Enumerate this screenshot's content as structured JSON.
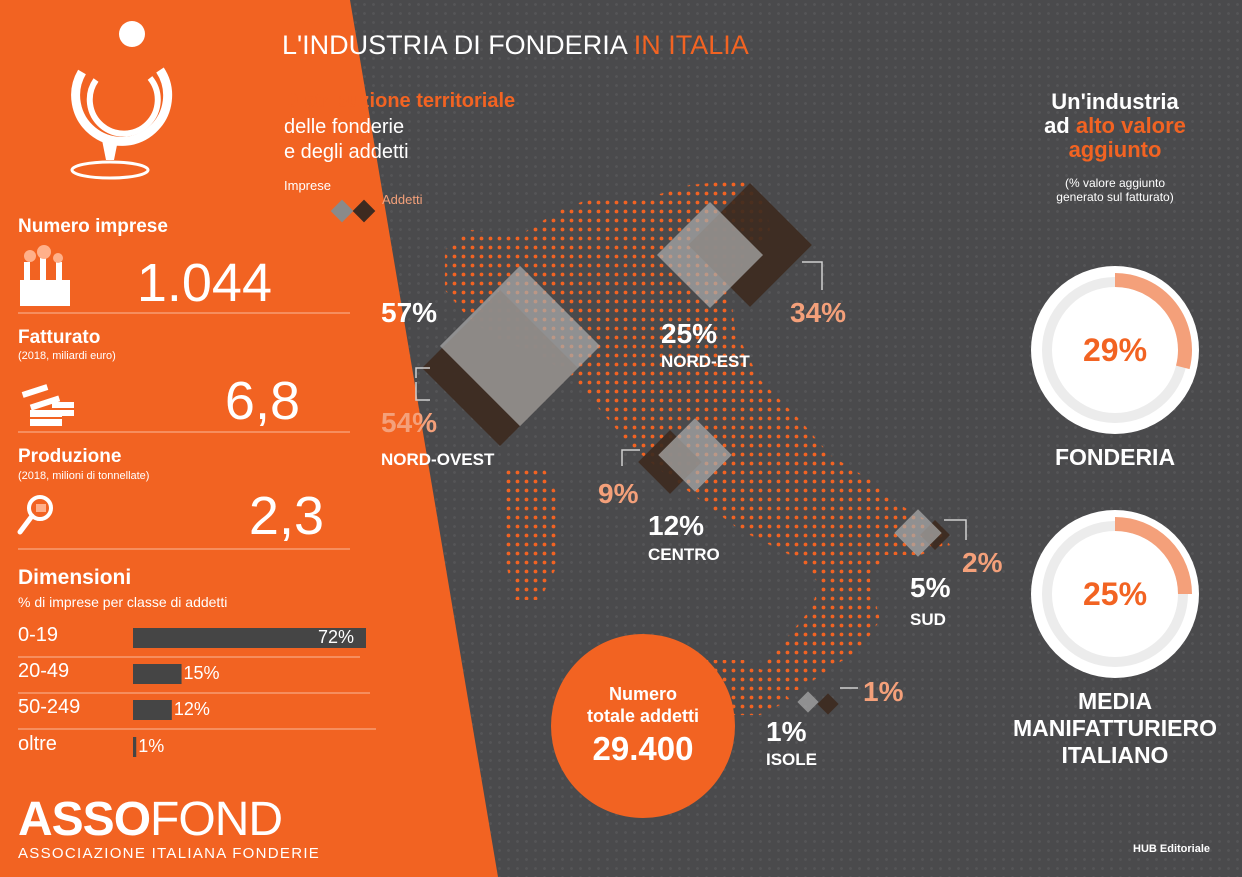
{
  "title": {
    "main": "L'INDUSTRIA DI FONDERIA",
    "accent": "IN ITALIA"
  },
  "distribution": {
    "title_accent": "Distribuzione territoriale",
    "title_line2": "delle fonderie",
    "title_line3": "e degli addetti",
    "legend": {
      "imprese": "Imprese",
      "addetti": "Addetti"
    }
  },
  "sidebar": {
    "numero_imprese": {
      "label": "Numero imprese",
      "value": "1.044"
    },
    "fatturato": {
      "label": "Fatturato",
      "sub": "(2018, miliardi euro)",
      "value": "6,8"
    },
    "produzione": {
      "label": "Produzione",
      "sub": "(2018, milioni di tonnellate)",
      "value": "2,3"
    },
    "dimensioni": {
      "label": "Dimensioni",
      "sub": "% di imprese per classe di addetti"
    },
    "logo": {
      "asso": "ASSO",
      "fond": "FOND",
      "tagline": "ASSOCIAZIONE ITALIANA FONDERIE"
    }
  },
  "chart_data": [
    {
      "type": "bar",
      "title": "Dimensioni",
      "subtitle": "% di imprese per classe di addetti",
      "categories": [
        "0-19",
        "20-49",
        "50-249",
        "oltre"
      ],
      "values": [
        72,
        15,
        12,
        1
      ],
      "value_labels": [
        "72%",
        "15%",
        "12%",
        "1%"
      ],
      "xlim": [
        0,
        72
      ],
      "orientation": "horizontal"
    },
    {
      "type": "scatter",
      "title": "Distribuzione territoriale delle fonderie e degli addetti",
      "series": [
        {
          "name": "Imprese",
          "values": [
            57,
            25,
            12,
            5,
            1
          ],
          "labels": [
            "57%",
            "25%",
            "12%",
            "5%",
            "1%"
          ]
        },
        {
          "name": "Addetti",
          "values": [
            54,
            34,
            9,
            2,
            1
          ],
          "labels": [
            "54%",
            "34%",
            "9%",
            "2%",
            "1%"
          ]
        }
      ],
      "categories": [
        "NORD-OVEST",
        "NORD-EST",
        "CENTRO",
        "SUD",
        "ISOLE"
      ]
    },
    {
      "type": "pie",
      "title": "Un'industria ad alto valore aggiunto",
      "subtitle": "(% valore aggiunto generato sul fatturato)",
      "items": [
        {
          "name": "FONDERIA",
          "value": 29,
          "label": "29%"
        },
        {
          "name": "MEDIA MANIFATTURIERO ITALIANO",
          "value": 25,
          "label": "25%"
        }
      ]
    }
  ],
  "valore": {
    "line1": "Un'industria",
    "line2_pre": "ad",
    "line2_accent": "alto valore",
    "line3_accent": "aggiunto",
    "sub1": "(% valore aggiunto",
    "sub2": "generato sul fatturato)",
    "fonderia": "FONDERIA",
    "media1": "MEDIA",
    "media2": "MANIFATTURIERO",
    "media3": "ITALIANO"
  },
  "totale": {
    "line1": "Numero",
    "line2": "totale addetti",
    "value": "29.400"
  },
  "credit": "HUB Editoriale",
  "colors": {
    "orange": "#f26322",
    "dark": "#4a4a4c",
    "peach": "#f4a07a",
    "brown": "#3d2a20",
    "grey": "#9a9a9a"
  }
}
